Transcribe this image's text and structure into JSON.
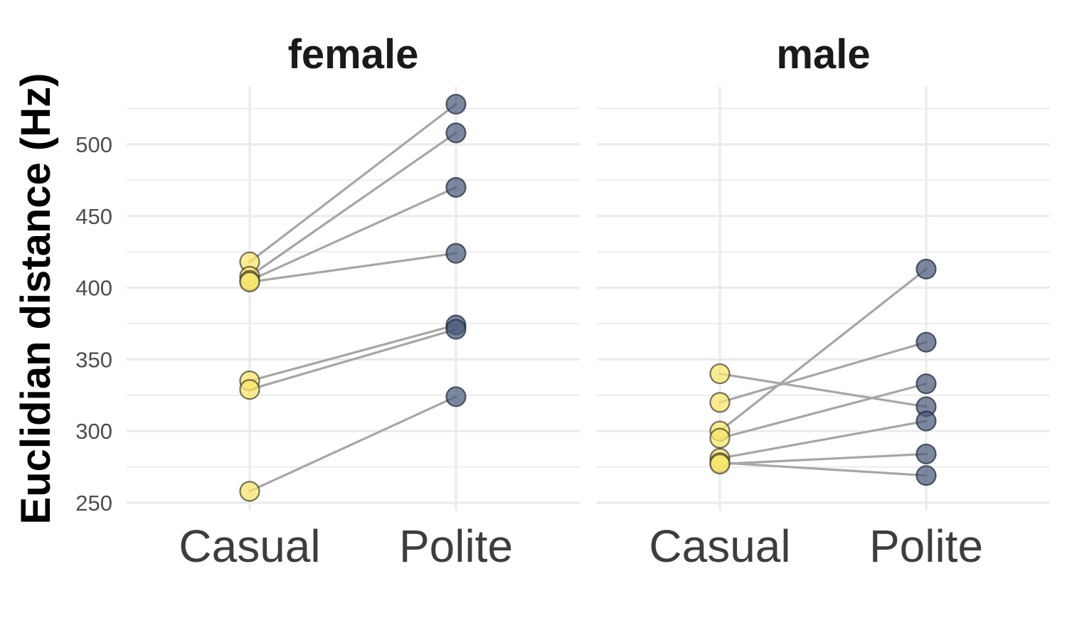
{
  "chart_data": {
    "type": "scatter",
    "ylabel": "Euclidian distance (Hz)",
    "xlabel": "",
    "categories": [
      "Casual",
      "Polite"
    ],
    "ylim": [
      245,
      532
    ],
    "yticks": [
      250,
      300,
      350,
      400,
      450,
      500
    ],
    "grid": true,
    "colors": {
      "Casual": "#f8e56c",
      "Polite": "#4a5a78",
      "line": "#a6a6a6",
      "grid": "#ebebeb"
    },
    "facets": [
      {
        "title": "female",
        "pairs": [
          {
            "Casual": 418,
            "Polite": 528
          },
          {
            "Casual": 408,
            "Polite": 508
          },
          {
            "Casual": 405,
            "Polite": 470
          },
          {
            "Casual": 404,
            "Polite": 424
          },
          {
            "Casual": 335,
            "Polite": 374
          },
          {
            "Casual": 329,
            "Polite": 371
          },
          {
            "Casual": 258,
            "Polite": 324
          }
        ]
      },
      {
        "title": "male",
        "pairs": [
          {
            "Casual": 340,
            "Polite": 317
          },
          {
            "Casual": 320,
            "Polite": 362
          },
          {
            "Casual": 300,
            "Polite": 413
          },
          {
            "Casual": 295,
            "Polite": 333
          },
          {
            "Casual": 281,
            "Polite": 307
          },
          {
            "Casual": 278,
            "Polite": 269
          },
          {
            "Casual": 277,
            "Polite": 284
          }
        ]
      }
    ]
  }
}
